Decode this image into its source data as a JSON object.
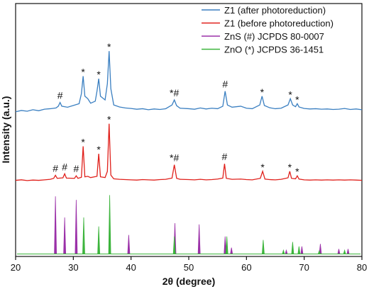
{
  "chart_data": {
    "type": "line",
    "x_label": "2θ (degree)",
    "y_label": "Intensity (a.u.)",
    "xlim": [
      20,
      80
    ],
    "xticks": [
      20,
      30,
      40,
      50,
      60,
      70,
      80
    ],
    "ylim": [
      -1,
      100
    ],
    "legend": "upper right",
    "series": [
      {
        "name": "Z1 (after photoreduction)",
        "type": "line",
        "color": "#3a7fc1",
        "x": [
          20,
          21,
          22,
          23,
          24,
          25,
          26,
          27,
          27.4,
          27.7,
          28.0,
          29,
          30,
          31,
          31.4,
          31.7,
          32.0,
          32.5,
          33,
          33.8,
          34.1,
          34.4,
          34.7,
          35.5,
          35.9,
          36.2,
          36.5,
          37,
          38,
          39,
          40,
          41,
          42,
          43,
          44,
          45,
          46,
          47.1,
          47.5,
          47.9,
          48.5,
          50,
          51,
          52,
          53,
          54,
          55,
          55.9,
          56.3,
          56.7,
          57.5,
          59,
          60,
          61,
          62.3,
          62.7,
          63.1,
          64,
          65,
          66,
          67.2,
          67.6,
          68.0,
          68.5,
          68.8,
          69.1,
          70,
          71,
          72,
          73,
          74,
          75,
          76,
          77,
          78,
          79,
          80
        ],
        "values": [
          56.8,
          57.3,
          57.0,
          57.6,
          57.2,
          57.8,
          58.0,
          58.3,
          59.0,
          60.5,
          59.0,
          58.6,
          59.3,
          60.0,
          64,
          71,
          63,
          62,
          60.2,
          61,
          65,
          70,
          63,
          61.5,
          68,
          81,
          66,
          59.5,
          58.7,
          58.3,
          58.1,
          57.8,
          58.0,
          57.6,
          57.9,
          57.7,
          58.0,
          59.5,
          61.5,
          59.2,
          58.2,
          58.0,
          57.8,
          58.3,
          57.9,
          58.2,
          58.0,
          59.0,
          65,
          59.5,
          58.6,
          59.0,
          58.2,
          58.0,
          59.5,
          63,
          59.3,
          58.4,
          58.0,
          58.2,
          59.5,
          62,
          59.5,
          58.8,
          60,
          58.7,
          58.1,
          57.9,
          58.0,
          57.8,
          57.9,
          57.7,
          57.8,
          58.1,
          57.7,
          57.9,
          57.6
        ],
        "annotations": [
          {
            "text": "#",
            "x": 27.7
          },
          {
            "text": "*",
            "x": 31.7
          },
          {
            "text": "*",
            "x": 34.4
          },
          {
            "text": "*",
            "x": 36.2
          },
          {
            "text": "*#",
            "x": 47.5
          },
          {
            "text": "#",
            "x": 56.3
          },
          {
            "text": "*",
            "x": 62.7
          },
          {
            "text": "*",
            "x": 67.6
          },
          {
            "text": "*",
            "x": 68.8
          }
        ]
      },
      {
        "name": "Z1 (before photoreduction)",
        "type": "line",
        "color": "#e0201b",
        "x": [
          20,
          21,
          22,
          23,
          24,
          25,
          26,
          26.6,
          26.9,
          27.2,
          28.2,
          28.5,
          28.8,
          30.2,
          30.5,
          30.8,
          31.4,
          31.7,
          32.0,
          32.5,
          33,
          34.1,
          34.4,
          34.7,
          35.5,
          35.9,
          36.2,
          36.5,
          37,
          38,
          39,
          40,
          41,
          42,
          43,
          44,
          45,
          46,
          47.1,
          47.5,
          47.9,
          48.5,
          50,
          51,
          52,
          53,
          54,
          55,
          55.9,
          56.2,
          56.5,
          57.5,
          59,
          60,
          61,
          62.4,
          62.8,
          63.2,
          64,
          65,
          66,
          67.2,
          67.5,
          67.8,
          68.5,
          68.8,
          69.1,
          70,
          71,
          72,
          73,
          74,
          75,
          76,
          77,
          78,
          79,
          80
        ],
        "values": [
          29.4,
          29.6,
          29.3,
          29.5,
          29.4,
          29.6,
          29.8,
          30.2,
          31.4,
          30.2,
          30.4,
          32.0,
          30.3,
          30.2,
          31.2,
          30.2,
          30.6,
          43,
          30.8,
          31,
          30.5,
          31,
          40,
          30.8,
          30.5,
          33,
          52,
          31.5,
          30,
          29.8,
          29.7,
          29.6,
          29.5,
          29.7,
          29.6,
          29.5,
          29.7,
          29.8,
          30.3,
          35.6,
          30.2,
          29.8,
          29.7,
          29.6,
          29.8,
          29.6,
          29.7,
          29.9,
          30.3,
          36,
          30.2,
          29.8,
          29.9,
          29.7,
          29.6,
          30.2,
          33,
          29.9,
          29.7,
          29.6,
          29.8,
          30.4,
          33,
          30.2,
          30.0,
          31.2,
          29.9,
          29.6,
          29.5,
          29.6,
          29.5,
          29.6,
          29.5,
          29.6,
          29.5,
          29.6,
          29.5,
          29.4
        ],
        "annotations": [
          {
            "text": "#",
            "x": 26.9
          },
          {
            "text": "#",
            "x": 28.5
          },
          {
            "text": "#",
            "x": 30.5
          },
          {
            "text": "*",
            "x": 31.7
          },
          {
            "text": "*",
            "x": 34.4
          },
          {
            "text": "*",
            "x": 36.2
          },
          {
            "text": "*#",
            "x": 47.5
          },
          {
            "text": "#",
            "x": 56.2
          },
          {
            "text": "*",
            "x": 62.8
          },
          {
            "text": "*",
            "x": 67.5
          },
          {
            "text": "*",
            "x": 68.8
          }
        ]
      },
      {
        "name": "ZnS (#) JCPDS 80-0007",
        "type": "stem",
        "color": "#9b30a8",
        "x": [
          26.9,
          28.5,
          30.5,
          39.6,
          47.6,
          51.8,
          56.3,
          57.4,
          66.9,
          69.6,
          72.8,
          76.0,
          77.6
        ],
        "values": [
          23,
          14.6,
          21.6,
          7.6,
          12.3,
          11.8,
          7,
          2.5,
          1.5,
          3,
          4,
          2,
          2
        ]
      },
      {
        "name": "ZnO (*) JCPDS 36-1451",
        "type": "stem",
        "color": "#3cb43c",
        "x": [
          31.8,
          34.4,
          36.3,
          47.5,
          56.6,
          62.9,
          66.4,
          68.0,
          69.1,
          72.6,
          77.0
        ],
        "values": [
          14.6,
          11,
          23.5,
          7,
          7,
          5.6,
          1.5,
          4.8,
          3,
          1.2,
          1.5
        ]
      }
    ]
  }
}
